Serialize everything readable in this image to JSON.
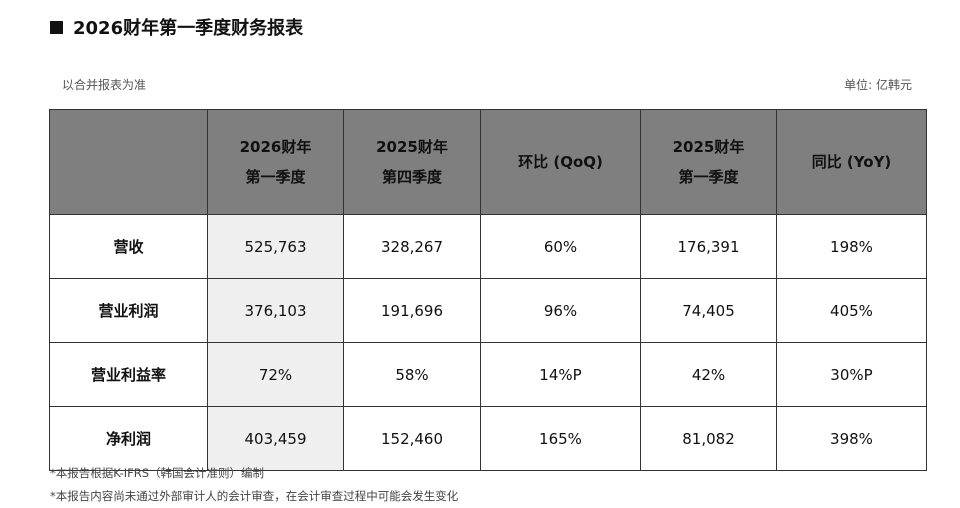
{
  "title": "2026财年第一季度财务报表",
  "note": "以合并报表为准",
  "unit": "单位: 亿韩元",
  "table": {
    "header": [
      [
        "2026财年",
        "第一季度"
      ],
      [
        "2025财年",
        "第四季度"
      ],
      [
        "环比 (QoQ)"
      ],
      [
        "2025财年",
        "第一季度"
      ],
      [
        "同比 (YoY)"
      ]
    ],
    "rows": [
      [
        "营收",
        "525,763",
        "328,267",
        "60%",
        "176,391",
        "198%"
      ],
      [
        "营业利润",
        "376,103",
        "191,696",
        "96%",
        "74,405",
        "405%"
      ],
      [
        "营业利益率",
        "72%",
        "58%",
        "14%P",
        "42%",
        "30%P"
      ],
      [
        "净利润",
        "403,459",
        "152,460",
        "165%",
        "81,082",
        "398%"
      ]
    ]
  },
  "footnotes": [
    "*本报告根据K-IFRS（韩国会计准则）编制",
    "*本报告内容尚未通过外部审计人的会计审查，在会计审查过程中可能会发生变化"
  ]
}
